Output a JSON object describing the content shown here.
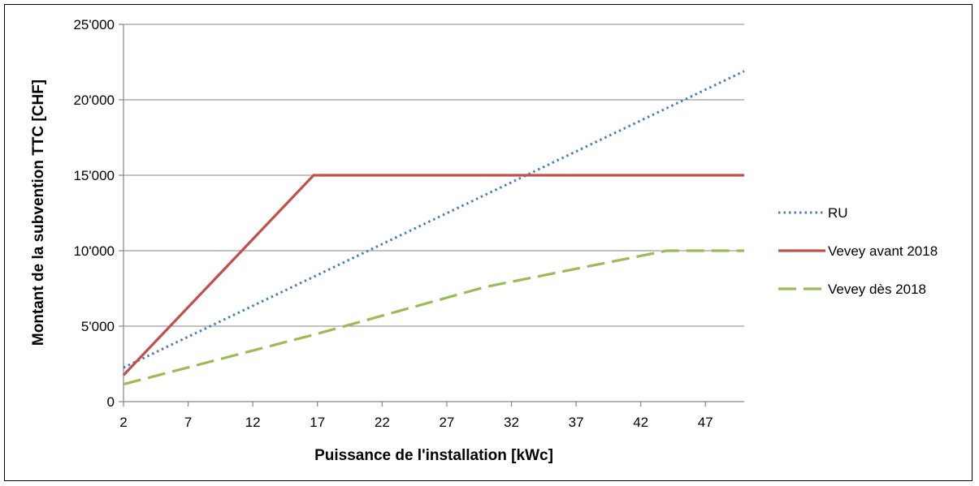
{
  "chart_data": {
    "type": "line",
    "xlabel": "Puissance de l'installation [kWc]",
    "ylabel": "Montant de la subvention TTC [CHF]",
    "xlim": [
      2,
      50
    ],
    "ylim": [
      0,
      25000
    ],
    "x_ticks": [
      2,
      7,
      12,
      17,
      22,
      27,
      32,
      37,
      42,
      47
    ],
    "y_ticks": [
      0,
      5000,
      10000,
      15000,
      20000,
      25000
    ],
    "y_tick_labels": [
      "0",
      "5'000",
      "10'000",
      "15'000",
      "20'000",
      "25'000"
    ],
    "grid": "horizontal",
    "legend_position": "right",
    "series": [
      {
        "name": "RU",
        "style": "dotted",
        "color": "#4a7ebb",
        "x": [
          2,
          50
        ],
        "y": [
          2250,
          21900
        ]
      },
      {
        "name": "Vevey avant 2018",
        "style": "solid",
        "color": "#c0504d",
        "x": [
          2,
          16.7,
          50
        ],
        "y": [
          1750,
          15000,
          15000
        ]
      },
      {
        "name": "Vevey dès 2018",
        "style": "dashed",
        "color": "#9bbb59",
        "x": [
          2,
          17,
          30,
          44,
          50
        ],
        "y": [
          1150,
          4500,
          7600,
          10000,
          10000
        ]
      }
    ]
  }
}
